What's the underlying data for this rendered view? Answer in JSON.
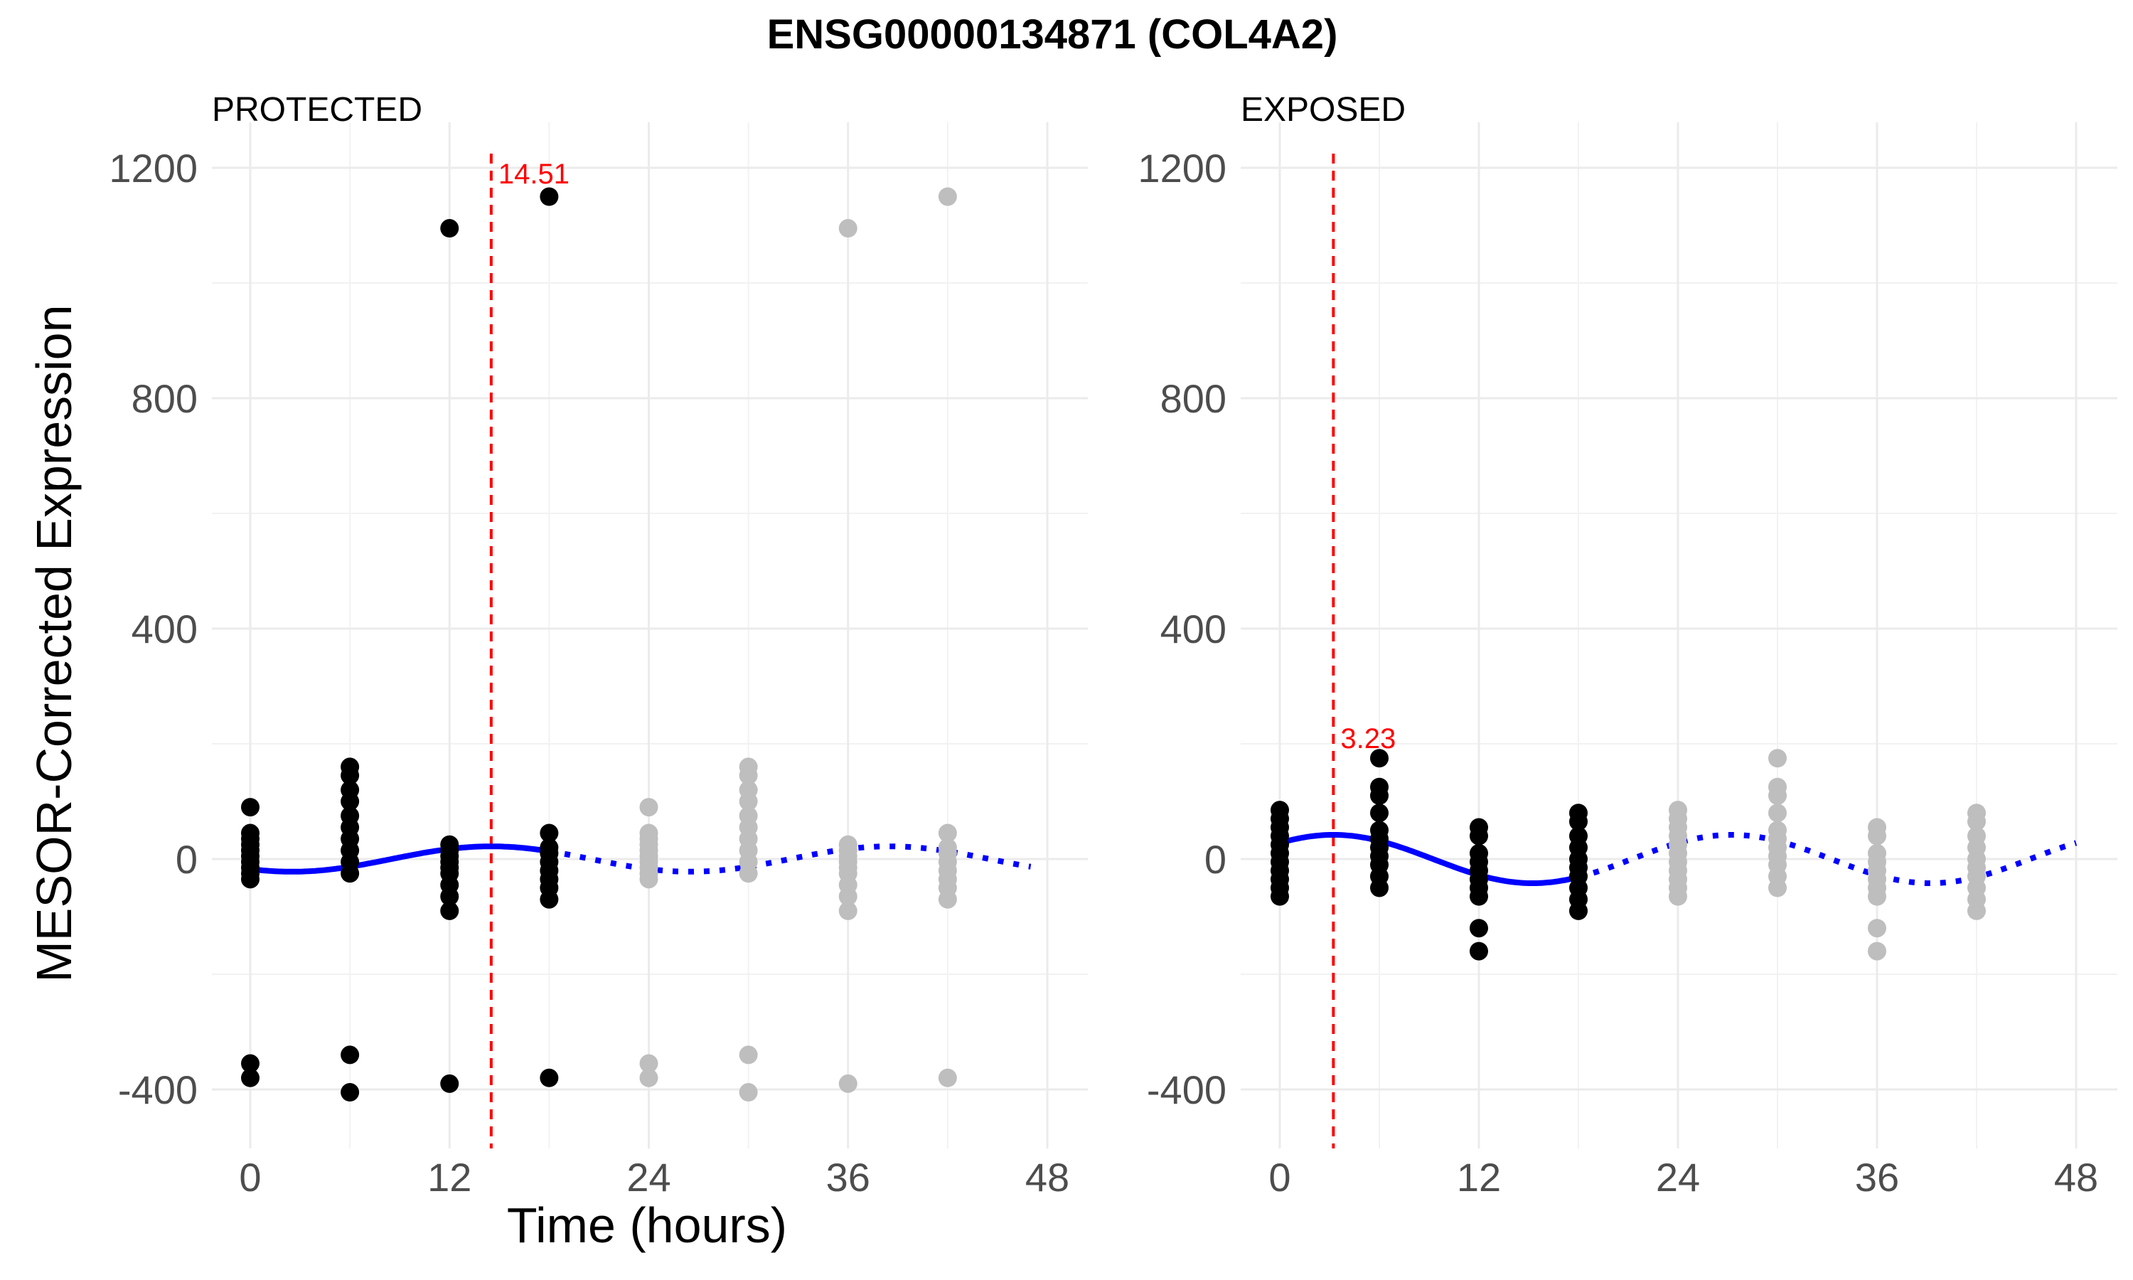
{
  "chart_data": {
    "type": "scatter",
    "title": "ENSG00000134871 (COL4A2)",
    "xlabel": "Time (hours)",
    "ylabel": "MESOR-Corrected Expression",
    "xlim": [
      -3,
      50
    ],
    "ylim": [
      -450,
      1220
    ],
    "x_ticks": [
      0,
      12,
      24,
      36,
      48
    ],
    "y_ticks": [
      -400,
      0,
      400,
      800,
      1200
    ],
    "grid": true,
    "colors": {
      "observed": "#000000",
      "replicated": "#bebebe",
      "fit": "#0000ff",
      "peak_line": "#ff0000"
    },
    "panels": [
      {
        "label": "PROTECTED",
        "peak": 14.51,
        "peak_label": "14.51",
        "peak_label_y": 1190,
        "fit": {
          "mesor": 0,
          "amplitude": 22,
          "period": 24,
          "acrophase": 14.51,
          "solid_range": [
            0,
            18
          ],
          "dotted_range": [
            18,
            47
          ]
        },
        "observed": [
          {
            "x": 0,
            "y": [
              90,
              45,
              35,
              25,
              15,
              5,
              -5,
              -15,
              -25,
              -35,
              -355,
              -380
            ]
          },
          {
            "x": 6,
            "y": [
              160,
              145,
              120,
              100,
              75,
              55,
              35,
              15,
              -5,
              -25,
              -340,
              -405
            ]
          },
          {
            "x": 12,
            "y": [
              1095,
              25,
              15,
              5,
              -5,
              -15,
              -25,
              -45,
              -65,
              -90,
              -390
            ]
          },
          {
            "x": 18,
            "y": [
              1150,
              45,
              20,
              10,
              -5,
              -20,
              -35,
              -50,
              -70,
              -380
            ]
          }
        ],
        "replicated": [
          {
            "x": 24,
            "y": [
              90,
              45,
              35,
              25,
              15,
              5,
              -5,
              -15,
              -25,
              -35,
              -355,
              -380
            ]
          },
          {
            "x": 30,
            "y": [
              160,
              145,
              120,
              100,
              75,
              55,
              35,
              15,
              -5,
              -25,
              -340,
              -405
            ]
          },
          {
            "x": 36,
            "y": [
              1095,
              25,
              15,
              5,
              -5,
              -15,
              -25,
              -45,
              -65,
              -90,
              -390
            ]
          },
          {
            "x": 42,
            "y": [
              1150,
              45,
              20,
              10,
              -5,
              -20,
              -35,
              -50,
              -70,
              -380
            ]
          }
        ]
      },
      {
        "label": "EXPOSED",
        "peak": 3.23,
        "peak_label": "3.23",
        "peak_label_y": 210,
        "fit": {
          "mesor": 0,
          "amplitude": 42,
          "period": 24,
          "acrophase": 3.23,
          "solid_range": [
            0,
            18
          ],
          "dotted_range": [
            18,
            48
          ]
        },
        "observed": [
          {
            "x": 0,
            "y": [
              85,
              70,
              55,
              40,
              25,
              10,
              -5,
              -20,
              -35,
              -50,
              -65
            ]
          },
          {
            "x": 6,
            "y": [
              175,
              125,
              110,
              80,
              50,
              35,
              20,
              5,
              -10,
              -30,
              -50
            ]
          },
          {
            "x": 12,
            "y": [
              55,
              40,
              10,
              -5,
              -20,
              -35,
              -50,
              -65,
              -120,
              -160
            ]
          },
          {
            "x": 18,
            "y": [
              80,
              65,
              40,
              20,
              0,
              -15,
              -30,
              -50,
              -70,
              -90
            ]
          }
        ],
        "replicated": [
          {
            "x": 24,
            "y": [
              85,
              70,
              55,
              40,
              25,
              10,
              -5,
              -20,
              -35,
              -50,
              -65
            ]
          },
          {
            "x": 30,
            "y": [
              175,
              125,
              110,
              80,
              50,
              35,
              20,
              5,
              -10,
              -30,
              -50
            ]
          },
          {
            "x": 36,
            "y": [
              55,
              40,
              10,
              -5,
              -20,
              -35,
              -50,
              -65,
              -120,
              -160
            ]
          },
          {
            "x": 42,
            "y": [
              80,
              65,
              40,
              20,
              0,
              -15,
              -30,
              -50,
              -70,
              -90
            ]
          }
        ]
      }
    ]
  }
}
